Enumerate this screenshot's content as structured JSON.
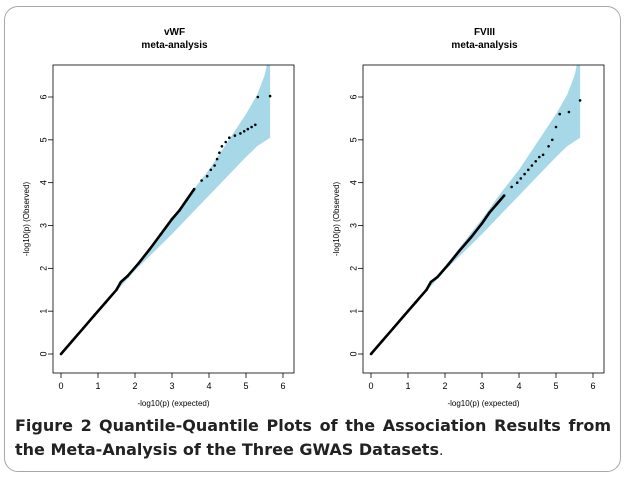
{
  "chart_data": [
    {
      "type": "scatter",
      "title": "vWF",
      "subtitle": "meta-analysis",
      "xlabel": "-log10(p) (expected)",
      "ylabel": "-log10(p) (Observed)",
      "xlim": [
        0,
        6
      ],
      "ylim": [
        0,
        6
      ],
      "xticks": [
        "0",
        "1",
        "2",
        "3",
        "4",
        "5",
        "6"
      ],
      "yticks": [
        "0",
        "1",
        "2",
        "3",
        "4",
        "5",
        "6"
      ],
      "band_color": "#a6d8e7",
      "point_color": "#000000",
      "band_upper": [
        [
          0,
          0
        ],
        [
          1,
          1.02
        ],
        [
          2,
          2.05
        ],
        [
          3,
          3.15
        ],
        [
          3.5,
          3.75
        ],
        [
          4,
          4.3
        ],
        [
          4.5,
          4.95
        ],
        [
          5,
          5.6
        ],
        [
          5.3,
          6.05
        ],
        [
          5.5,
          6.5
        ],
        [
          5.65,
          7.1
        ]
      ],
      "band_lower": [
        [
          0,
          0
        ],
        [
          1,
          0.98
        ],
        [
          2,
          1.95
        ],
        [
          3,
          2.8
        ],
        [
          3.5,
          3.25
        ],
        [
          4,
          3.7
        ],
        [
          4.5,
          4.15
        ],
        [
          5,
          4.6
        ],
        [
          5.3,
          4.85
        ],
        [
          5.65,
          5.05
        ]
      ],
      "points": [
        [
          0,
          0
        ],
        [
          0.3,
          0.3
        ],
        [
          0.6,
          0.6
        ],
        [
          0.9,
          0.9
        ],
        [
          1.2,
          1.2
        ],
        [
          1.5,
          1.5
        ],
        [
          1.62,
          1.68
        ],
        [
          1.8,
          1.82
        ],
        [
          2.1,
          2.12
        ],
        [
          2.4,
          2.45
        ],
        [
          2.7,
          2.8
        ],
        [
          3.0,
          3.15
        ],
        [
          3.2,
          3.35
        ],
        [
          3.4,
          3.6
        ],
        [
          3.6,
          3.85
        ],
        [
          3.8,
          4.05
        ],
        [
          3.95,
          4.15
        ],
        [
          4.05,
          4.3
        ],
        [
          4.15,
          4.4
        ],
        [
          4.22,
          4.55
        ],
        [
          4.28,
          4.7
        ],
        [
          4.35,
          4.85
        ],
        [
          4.45,
          4.95
        ],
        [
          4.55,
          5.05
        ],
        [
          4.7,
          5.1
        ],
        [
          4.85,
          5.15
        ],
        [
          4.95,
          5.2
        ],
        [
          5.05,
          5.25
        ],
        [
          5.15,
          5.3
        ],
        [
          5.25,
          5.35
        ],
        [
          5.32,
          6.0
        ],
        [
          5.65,
          6.02
        ]
      ]
    },
    {
      "type": "scatter",
      "title": "FVIII",
      "subtitle": "meta-analysis",
      "xlabel": "-log10(p) (expected)",
      "ylabel": "-log10(p) (Observed)",
      "xlim": [
        0,
        6
      ],
      "ylim": [
        0,
        6
      ],
      "xticks": [
        "0",
        "1",
        "2",
        "3",
        "4",
        "5",
        "6"
      ],
      "yticks": [
        "0",
        "1",
        "2",
        "3",
        "4",
        "5",
        "6"
      ],
      "band_color": "#a6d8e7",
      "point_color": "#000000",
      "band_upper": [
        [
          0,
          0
        ],
        [
          1,
          1.02
        ],
        [
          2,
          2.05
        ],
        [
          3,
          3.15
        ],
        [
          3.5,
          3.75
        ],
        [
          4,
          4.3
        ],
        [
          4.5,
          4.95
        ],
        [
          5,
          5.6
        ],
        [
          5.3,
          6.05
        ],
        [
          5.5,
          6.5
        ],
        [
          5.65,
          7.1
        ]
      ],
      "band_lower": [
        [
          0,
          0
        ],
        [
          1,
          0.98
        ],
        [
          2,
          1.95
        ],
        [
          3,
          2.8
        ],
        [
          3.5,
          3.25
        ],
        [
          4,
          3.7
        ],
        [
          4.5,
          4.15
        ],
        [
          5,
          4.6
        ],
        [
          5.3,
          4.85
        ],
        [
          5.65,
          5.05
        ]
      ],
      "points": [
        [
          0,
          0
        ],
        [
          0.3,
          0.3
        ],
        [
          0.6,
          0.6
        ],
        [
          0.9,
          0.9
        ],
        [
          1.2,
          1.2
        ],
        [
          1.5,
          1.5
        ],
        [
          1.62,
          1.68
        ],
        [
          1.8,
          1.8
        ],
        [
          2.1,
          2.1
        ],
        [
          2.4,
          2.42
        ],
        [
          2.7,
          2.72
        ],
        [
          3.0,
          3.05
        ],
        [
          3.2,
          3.3
        ],
        [
          3.4,
          3.5
        ],
        [
          3.6,
          3.7
        ],
        [
          3.8,
          3.9
        ],
        [
          3.95,
          4.0
        ],
        [
          4.05,
          4.1
        ],
        [
          4.15,
          4.2
        ],
        [
          4.25,
          4.3
        ],
        [
          4.35,
          4.4
        ],
        [
          4.45,
          4.5
        ],
        [
          4.55,
          4.6
        ],
        [
          4.65,
          4.65
        ],
        [
          4.8,
          4.85
        ],
        [
          4.9,
          5.0
        ],
        [
          5.0,
          5.3
        ],
        [
          5.1,
          5.6
        ],
        [
          5.35,
          5.65
        ],
        [
          5.65,
          5.92
        ]
      ]
    }
  ],
  "caption": {
    "label": "Figure 2",
    "text": "Quantile-Quantile Plots of the Association Results from the Meta-Analysis of the Three GWAS Datasets",
    "end": "."
  }
}
